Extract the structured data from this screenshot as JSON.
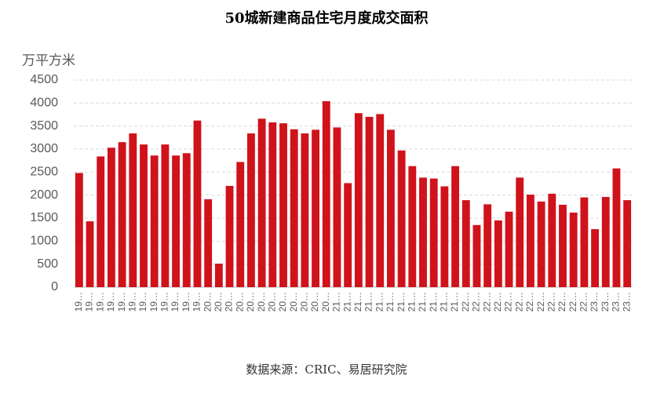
{
  "chart_data": {
    "type": "bar",
    "title": "50城新建商品住宅月度成交面积",
    "y_axis_label": "万平方米",
    "source": "数据来源：CRIC、易居研究院",
    "color": "#d0121b",
    "grid": true,
    "categories": [
      "19…",
      "19…",
      "19…",
      "19…",
      "19…",
      "19…",
      "19…",
      "19…",
      "19…",
      "19…",
      "19…",
      "19…",
      "20…",
      "20…",
      "20…",
      "20…",
      "20…",
      "20…",
      "20…",
      "20…",
      "20…",
      "20…",
      "20…",
      "20…",
      "21…",
      "21…",
      "21…",
      "21…",
      "21…",
      "21…",
      "21…",
      "21…",
      "21…",
      "21…",
      "21…",
      "21…",
      "22…",
      "22…",
      "22…",
      "22…",
      "22…",
      "22…",
      "22…",
      "22…",
      "22…",
      "22…",
      "22…",
      "22…",
      "23…",
      "23…",
      "23…",
      "23…"
    ],
    "values": [
      2480,
      1430,
      2840,
      3030,
      3150,
      3340,
      3100,
      2860,
      3100,
      2860,
      2910,
      3620,
      1910,
      510,
      2200,
      2720,
      3340,
      3660,
      3580,
      3560,
      3430,
      3340,
      3420,
      4040,
      3470,
      2260,
      3780,
      3700,
      3760,
      3420,
      2970,
      2630,
      2380,
      2360,
      2190,
      2630,
      1890,
      1350,
      1800,
      1450,
      1640,
      2380,
      2010,
      1860,
      2030,
      1790,
      1620,
      1950,
      1260,
      1960,
      2580,
      1890
    ],
    "ylim": [
      0,
      4500
    ],
    "yticks": [
      0,
      500,
      1000,
      1500,
      2000,
      2500,
      3000,
      3500,
      4000,
      4500
    ]
  }
}
